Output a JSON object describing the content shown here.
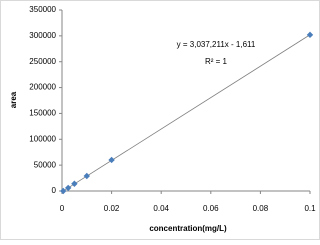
{
  "chart_data": {
    "type": "scatter",
    "x_label": "concentration(mg/L)",
    "y_label": "area",
    "series": [
      {
        "color": "#4a7ebb",
        "x": [
          0.0005,
          0.0025,
          0.005,
          0.01,
          0.02,
          0.1
        ],
        "values": [
          0,
          6000,
          14000,
          29000,
          60000,
          302000
        ]
      }
    ],
    "trendline": {
      "slope": 3037211,
      "intercept": -1611,
      "color": "#808080",
      "label": "y = 3,037,211x - 1,611",
      "r2_label": "R² = 1"
    },
    "xlim": [
      0,
      0.1
    ],
    "xticks": [
      0,
      0.02,
      0.04,
      0.06,
      0.08,
      0.1
    ],
    "ylim": [
      0,
      350000
    ],
    "yticks": [
      0,
      50000,
      100000,
      150000,
      200000,
      250000,
      300000,
      350000
    ],
    "grid": false
  }
}
